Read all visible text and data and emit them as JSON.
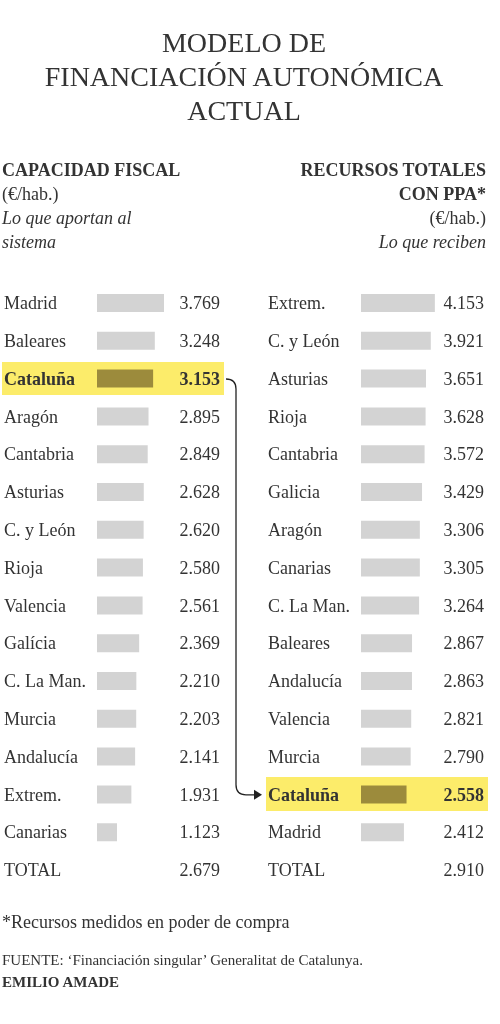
{
  "chart_data": [
    {
      "type": "other",
      "title": "MODELO DE\nFINANCIACIÓN AUTONÓMICA\nACTUAL",
      "annotations": [
        "*Recursos medidos en poder de compra",
        "FUENTE: ‘Financiación singular’ Generalitat de Catalunya.",
        "EMILIO AMADE"
      ]
    },
    {
      "type": "bar",
      "orientation": "horizontal",
      "title": "CAPACIDAD FISCAL",
      "subtitle": "(€/hab.)",
      "annotations": [
        "Lo que aportan al sistema"
      ],
      "categories": [
        "Madrid",
        "Baleares",
        "Cataluña",
        "Aragón",
        "Cantabria",
        "Asturias",
        "C. y León",
        "Rioja",
        "Valencia",
        "Galícia",
        "C. La Man.",
        "Murcia",
        "Andalucía",
        "Extrem.",
        "Canarias",
        "TOTAL"
      ],
      "values": [
        3769,
        3248,
        3153,
        2895,
        2849,
        2628,
        2620,
        2580,
        2561,
        2369,
        2210,
        2203,
        2141,
        1931,
        1123,
        null
      ],
      "value_labels": [
        "3.769",
        "3.248",
        "3.153",
        "2.895",
        "2.849",
        "2.628",
        "2.620",
        "2.580",
        "2.561",
        "2.369",
        "2.210",
        "2.203",
        "2.141",
        "1.931",
        "1.123",
        "2.679"
      ],
      "colors": [
        "#d3d3d3",
        "#d3d3d3",
        "#9c8b3c",
        "#d3d3d3",
        "#d3d3d3",
        "#d3d3d3",
        "#d3d3d3",
        "#d3d3d3",
        "#d3d3d3",
        "#d3d3d3",
        "#d3d3d3",
        "#d3d3d3",
        "#d3d3d3",
        "#d3d3d3",
        "#d3d3d3",
        null
      ],
      "bands": [
        {
          "axis": "y",
          "from": "Cataluña",
          "to": "Cataluña",
          "color": "#fcec6a"
        }
      ]
    },
    {
      "type": "bar",
      "orientation": "horizontal",
      "title": "RECURSOS TOTALES CON PPA*",
      "subtitle": "(€/hab.)",
      "annotations": [
        "Lo que reciben"
      ],
      "categories": [
        "Extrem.",
        "C. y León",
        "Asturias",
        "Rioja",
        "Cantabria",
        "Galicia",
        "Aragón",
        "Canarias",
        "C. La Man.",
        "Baleares",
        "Andalucía",
        "Valencia",
        "Murcia",
        "Cataluña",
        "Madrid",
        "TOTAL"
      ],
      "values": [
        4153,
        3921,
        3651,
        3628,
        3572,
        3429,
        3306,
        3305,
        3264,
        2867,
        2863,
        2821,
        2790,
        2558,
        2412,
        null
      ],
      "value_labels": [
        "4.153",
        "3.921",
        "3.651",
        "3.628",
        "3.572",
        "3.429",
        "3.306",
        "3.305",
        "3.264",
        "2.867",
        "2.863",
        "2.821",
        "2.790",
        "2.558",
        "2.412",
        "2.910"
      ],
      "colors": [
        "#d3d3d3",
        "#d3d3d3",
        "#d3d3d3",
        "#d3d3d3",
        "#d3d3d3",
        "#d3d3d3",
        "#d3d3d3",
        "#d3d3d3",
        "#d3d3d3",
        "#d3d3d3",
        "#d3d3d3",
        "#d3d3d3",
        "#d3d3d3",
        "#9c8b3c",
        "#d3d3d3",
        null
      ],
      "bands": [
        {
          "axis": "y",
          "from": "Cataluña",
          "to": "Cataluña",
          "color": "#fcec6a"
        }
      ]
    }
  ]
}
